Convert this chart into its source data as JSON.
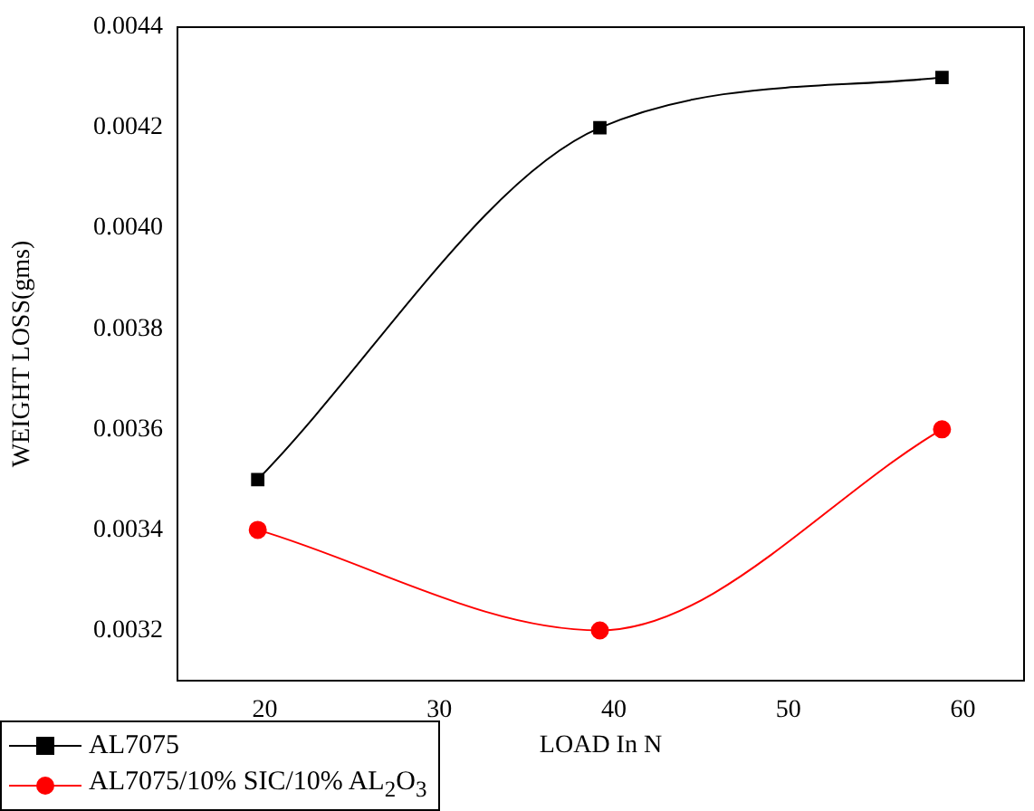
{
  "chart_data": {
    "type": "line",
    "xlabel": "LOAD In N",
    "ylabel": "WEIGHT LOSS(gms)",
    "x": [
      19.6,
      39.2,
      58.8
    ],
    "series": [
      {
        "name": "AL7075",
        "color": "#000000",
        "marker": "square",
        "values": [
          0.0035,
          0.0042,
          0.0043
        ]
      },
      {
        "name": "AL7075/10% SIC/10% AL$_{2}$O$_{3}$",
        "color": "#ff0000",
        "marker": "circle",
        "values": [
          0.0034,
          0.0032,
          0.0036
        ]
      }
    ],
    "xlim": [
      15,
      63.5
    ],
    "xticks": [
      20,
      30,
      40,
      50,
      60
    ],
    "ylim": [
      0.0031,
      0.0044
    ],
    "yticks": [
      0.0032,
      0.0034,
      0.0036,
      0.0038,
      {
        "value": 0.004,
        "label": "0.0040"
      },
      0.0042,
      0.0044
    ],
    "grid": false,
    "legend": "bottom left",
    "line_style": "solid"
  }
}
